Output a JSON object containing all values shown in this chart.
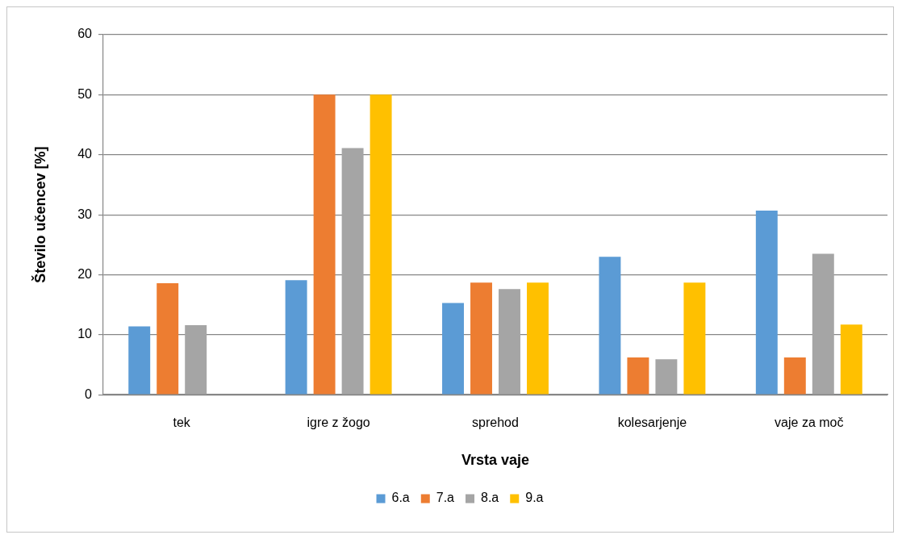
{
  "chart_data": {
    "type": "bar",
    "categories": [
      "tek",
      "igre z žogo",
      "sprehod",
      "kolesarjenje",
      "vaje za moč"
    ],
    "series": [
      {
        "name": "6.a",
        "color": "#5b9bd5",
        "values": [
          11.4,
          19.1,
          15.3,
          23.0,
          30.7
        ]
      },
      {
        "name": "7.a",
        "color": "#ed7d31",
        "values": [
          18.6,
          50,
          18.7,
          6.2,
          6.2
        ]
      },
      {
        "name": "8.a",
        "color": "#a5a5a5",
        "values": [
          11.6,
          41.1,
          17.6,
          5.9,
          23.5
        ]
      },
      {
        "name": "9.a",
        "color": "#ffc000",
        "values": [
          0,
          50,
          18.7,
          18.7,
          11.7
        ]
      }
    ],
    "xlabel": "Vrsta vaje",
    "ylabel": "Število učencev [%]",
    "ylim": [
      0,
      60
    ],
    "yticks": [
      0,
      10,
      20,
      30,
      40,
      50,
      60
    ],
    "grid": "y",
    "legend": "bottom"
  }
}
